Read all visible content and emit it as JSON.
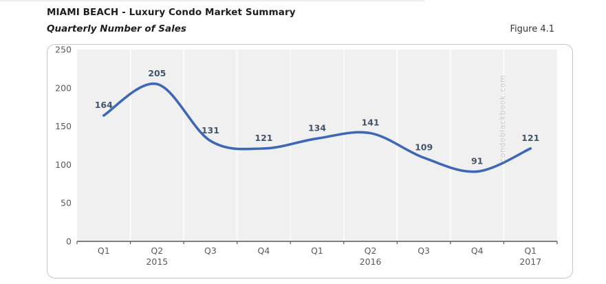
{
  "page": {
    "title": "MIAMI BEACH - Luxury Condo Market Summary",
    "subtitle": "Quarterly Number of Sales",
    "figure_label": "Figure 4.1",
    "watermark": "condoblackbook.com"
  },
  "chart_data": {
    "type": "line",
    "title": "Quarterly Number of Sales",
    "categories": [
      "Q1",
      "Q2",
      "Q3",
      "Q4",
      "Q1",
      "Q2",
      "Q3",
      "Q4",
      "Q1"
    ],
    "year_labels": [
      {
        "text": "2015",
        "category_index": 1
      },
      {
        "text": "2016",
        "category_index": 5
      },
      {
        "text": "2017",
        "category_index": 8
      }
    ],
    "values": [
      164,
      205,
      131,
      121,
      134,
      141,
      109,
      91,
      121
    ],
    "data_labels_shown": true,
    "ylim": [
      0,
      250
    ],
    "yticks": [
      0,
      50,
      100,
      150,
      200,
      250
    ],
    "grid": "vertical-major",
    "legend": "none",
    "smooth_line": true,
    "colors": {
      "line": "#3e68b5",
      "data_label": "#44546a",
      "axis_label": "#595959",
      "axis_line": "#595959",
      "plot_bg": "#f0f0f0",
      "gridline": "#fbfbfb",
      "watermark": "#c8c8c8",
      "card_border": "#c6c6c6"
    }
  }
}
